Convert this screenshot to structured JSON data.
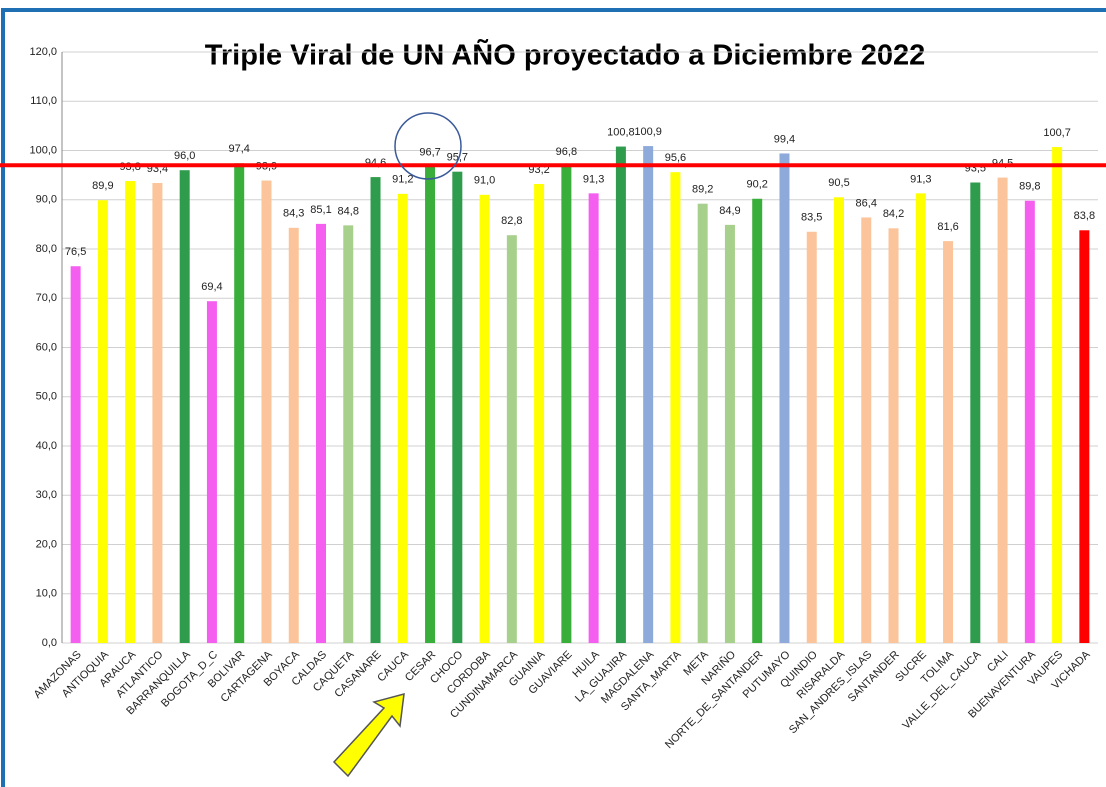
{
  "chart_data": {
    "type": "bar",
    "title": "Triple Viral de UN AÑO proyectado a Diciembre 2022",
    "categories": [
      "AMAZONAS",
      "ANTIOQUIA",
      "ARAUCA",
      "ATLANTICO",
      "BARRANQUILLA",
      "BOGOTA_D_C",
      "BOLIVAR",
      "CARTAGENA",
      "BOYACA",
      "CALDAS",
      "CAQUETA",
      "CASANARE",
      "CAUCA",
      "CESAR",
      "CHOCO",
      "CORDOBA",
      "CUNDINAMARCA",
      "GUAINIA",
      "GUAVIARE",
      "HUILA",
      "LA_GUAJIRA",
      "MAGDALENA",
      "SANTA_MARTA",
      "META",
      "NARIÑO",
      "NORTE_DE_SANTANDER",
      "PUTUMAYO",
      "QUINDIO",
      "RISARALDA",
      "SAN_ANDRES_ISLAS",
      "SANTANDER",
      "SUCRE",
      "TOLIMA",
      "VALLE_DEL_CAUCA",
      "CALI",
      "BUENAVENTURA",
      "VAUPES",
      "VICHADA"
    ],
    "values": [
      76.5,
      89.9,
      93.8,
      93.4,
      96.0,
      69.4,
      97.4,
      93.9,
      84.3,
      85.1,
      84.8,
      94.6,
      91.2,
      96.7,
      95.7,
      91.0,
      82.8,
      93.2,
      96.8,
      91.3,
      100.8,
      100.9,
      95.6,
      89.2,
      84.9,
      90.2,
      99.4,
      83.5,
      90.5,
      86.4,
      84.2,
      91.3,
      81.6,
      93.5,
      94.5,
      89.8,
      100.7,
      83.8
    ],
    "value_labels": [
      "76,5",
      "89,9",
      "93,8",
      "93,4",
      "96,0",
      "69,4",
      "97,4",
      "93,9",
      "84,3",
      "85,1",
      "84,8",
      "94,6",
      "91,2",
      "96,7",
      "95,7",
      "91,0",
      "82,8",
      "93,2",
      "96,8",
      "91,3",
      "100,8",
      "100,9",
      "95,6",
      "89,2",
      "84,9",
      "90,2",
      "99,4",
      "83,5",
      "90,5",
      "86,4",
      "84,2",
      "91,3",
      "81,6",
      "93,5",
      "94,5",
      "89,8",
      "100,7",
      "83,8"
    ],
    "colors": [
      "#f45ff0",
      "#ffff00",
      "#ffff00",
      "#fbc49a",
      "#2e9c4c",
      "#f45ff0",
      "#3aae3a",
      "#fbc49a",
      "#fbc49a",
      "#f45ff0",
      "#a8d08d",
      "#2e9c4c",
      "#ffff00",
      "#3aae3a",
      "#2e9c4c",
      "#ffff00",
      "#a8d08d",
      "#ffff00",
      "#3aae3a",
      "#f45ff0",
      "#2e9c4c",
      "#8eaadb",
      "#ffff00",
      "#a8d08d",
      "#a8d08d",
      "#3aae3a",
      "#8eaadb",
      "#fbc49a",
      "#ffff00",
      "#fbc49a",
      "#fbc49a",
      "#ffff00",
      "#fbc49a",
      "#2e9c4c",
      "#fbc49a",
      "#f45ff0",
      "#ffff00",
      "#ff0000"
    ],
    "ylim": [
      0,
      120
    ],
    "yticks": [
      {
        "value": 0,
        "label": "0,0"
      },
      {
        "value": 10,
        "label": "10,0"
      },
      {
        "value": 20,
        "label": "20,0"
      },
      {
        "value": 30,
        "label": "30,0"
      },
      {
        "value": 40,
        "label": "40,0"
      },
      {
        "value": 50,
        "label": "50,0"
      },
      {
        "value": 60,
        "label": "60,0"
      },
      {
        "value": 70,
        "label": "70,0"
      },
      {
        "value": 80,
        "label": "80,0"
      },
      {
        "value": 90,
        "label": "90,0"
      },
      {
        "value": 100,
        "label": "100,0"
      },
      {
        "value": 110,
        "label": "110,0"
      },
      {
        "value": 120,
        "label": "120,0"
      }
    ],
    "grid": true,
    "reference_line": {
      "value": 97,
      "color": "#ff0000"
    }
  }
}
